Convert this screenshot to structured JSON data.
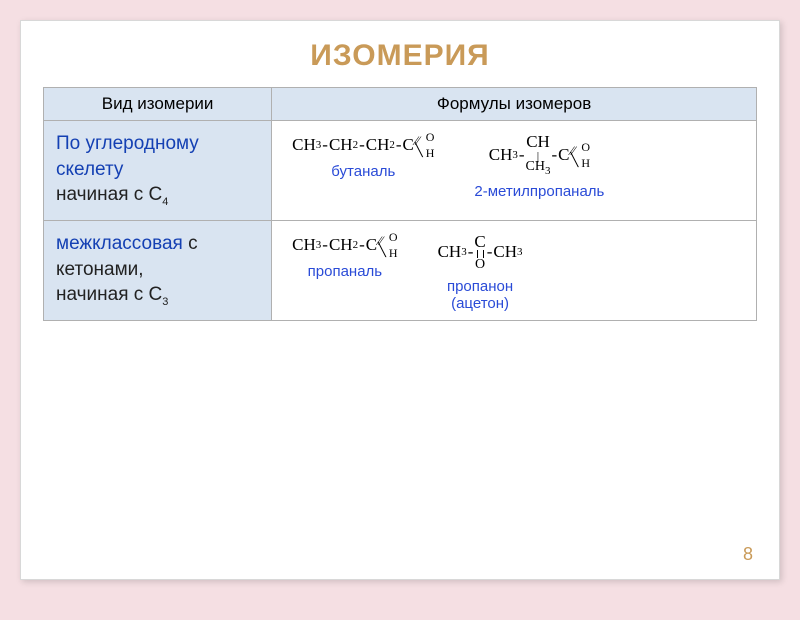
{
  "title": "ИЗОМЕРИЯ",
  "page_number": "8",
  "columns": {
    "left_header": "Вид изомерии",
    "right_header": "Формулы изомеров"
  },
  "rows": [
    {
      "label_blue": "По углеродному скелету",
      "label_black": "начиная с С",
      "label_sub": "4",
      "formulas": {
        "left": {
          "parts": [
            "CH",
            "3",
            "CH",
            "2",
            "CH",
            "2"
          ],
          "name": "бутаналь"
        },
        "right": {
          "parts": [
            "CH",
            "3",
            "CH"
          ],
          "branch": "CH",
          "branch_sub": "3",
          "name": "2-метилпропаналь"
        }
      }
    },
    {
      "label_blue": "межклассовая",
      "label_black_inline": " с кетонами,",
      "label_black": "начиная с С",
      "label_sub": "3",
      "formulas": {
        "left": {
          "parts": [
            "CH",
            "3",
            "CH",
            "2"
          ],
          "name": "пропаналь"
        },
        "right": {
          "parts_l": [
            "CH",
            "3"
          ],
          "parts_r": [
            "CH",
            "3"
          ],
          "name": "пропанон",
          "name2": "(ацетон)"
        }
      }
    }
  ],
  "cho": {
    "top": "O",
    "bot": "H"
  },
  "ketone_o": "O",
  "colors": {
    "bg": "#f5dfe3",
    "title": "#c99a58",
    "header_bg": "#d9e4f1",
    "blue_text": "#1440b3",
    "mol_name": "#2a4bd7"
  }
}
